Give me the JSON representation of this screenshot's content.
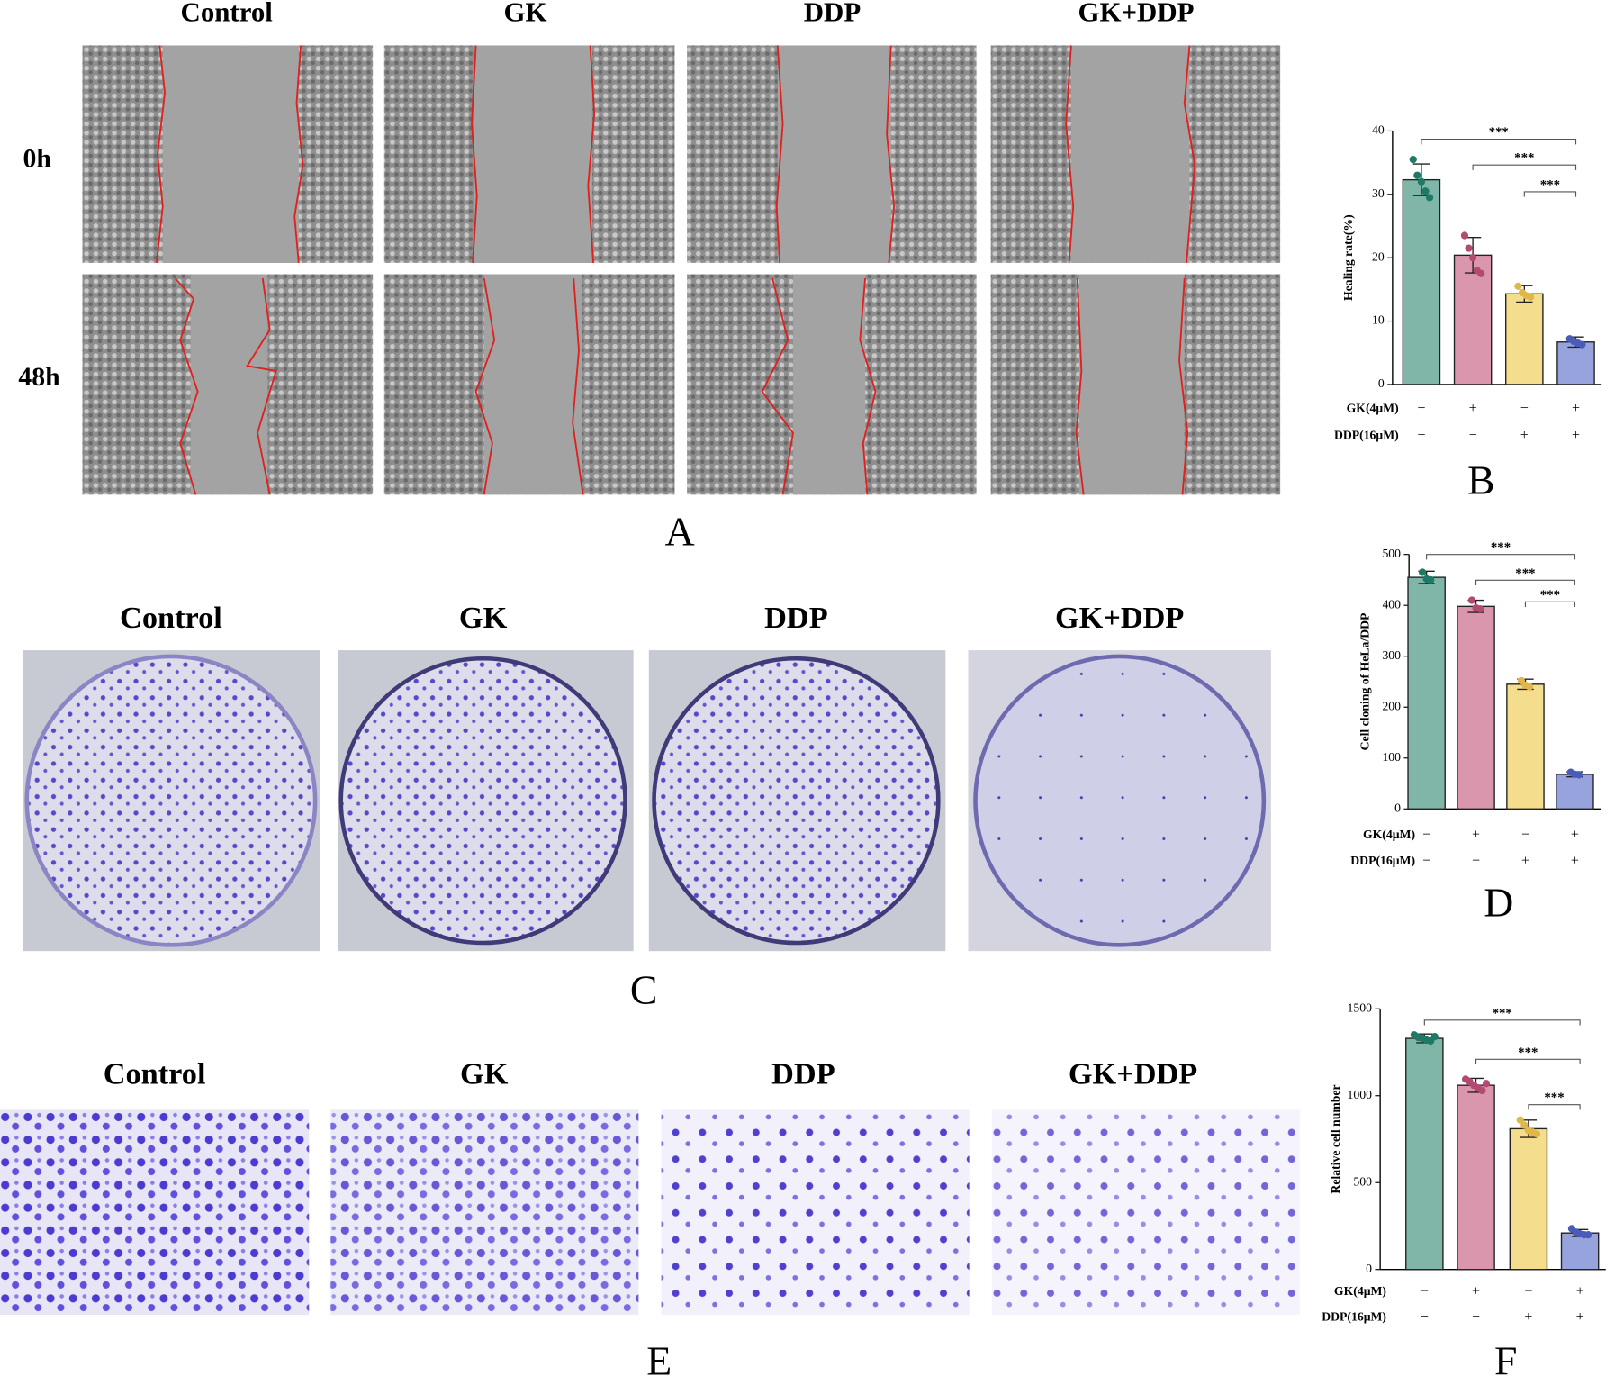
{
  "panels": {
    "A": {
      "letter": "A",
      "columns": [
        "Control",
        "GK",
        "DDP",
        "GK+DDP"
      ],
      "rows": [
        "0h",
        "48h"
      ]
    },
    "C": {
      "letter": "C",
      "columns": [
        "Control",
        "GK",
        "DDP",
        "GK+DDP"
      ]
    },
    "E": {
      "letter": "E",
      "columns": [
        "Control",
        "GK",
        "DDP",
        "GK+DDP"
      ]
    }
  },
  "chart_data": [
    {
      "type": "bar",
      "letter": "B",
      "ylabel": "Healing rate(%)",
      "ylim": [
        0,
        40
      ],
      "yticks": [
        0,
        10,
        20,
        30,
        40
      ],
      "values": [
        32.3,
        20.4,
        14.3,
        6.7
      ],
      "errors": [
        2.5,
        2.8,
        1.3,
        0.8
      ],
      "points": [
        [
          35.5,
          33,
          32,
          30.5,
          29.5
        ],
        [
          23.5,
          21.5,
          20,
          18,
          17.5
        ],
        [
          15.5,
          14.5,
          14,
          13.8
        ],
        [
          7.2,
          6.8,
          6.5,
          6.3
        ]
      ],
      "colors": [
        "#7fb6a8",
        "#d996ad",
        "#f5dd8e",
        "#97a3dc"
      ],
      "point_colors": [
        "#1e7a66",
        "#b34a72",
        "#e0b84a",
        "#4b5bb8"
      ],
      "conditions": [
        {
          "name": "GK(4μM)",
          "signs": [
            "−",
            "+",
            "−",
            "+"
          ]
        },
        {
          "name": "DDP(16μM)",
          "signs": [
            "−",
            "−",
            "+",
            "+"
          ]
        }
      ],
      "significance": [
        "***",
        "***",
        "***"
      ]
    },
    {
      "type": "bar",
      "letter": "D",
      "ylabel": "Cell cloning of HeLa/DDP",
      "ylim": [
        0,
        500
      ],
      "yticks": [
        0,
        100,
        200,
        300,
        400,
        500
      ],
      "values": [
        455,
        398,
        245,
        68
      ],
      "errors": [
        12,
        12,
        10,
        5
      ],
      "points": [
        [
          465,
          452,
          450
        ],
        [
          410,
          395,
          393
        ],
        [
          252,
          243,
          240
        ],
        [
          72,
          68,
          67
        ]
      ],
      "colors": [
        "#7fb6a8",
        "#d996ad",
        "#f5dd8e",
        "#97a3dc"
      ],
      "point_colors": [
        "#1e7a66",
        "#b34a72",
        "#e0b84a",
        "#4b5bb8"
      ],
      "conditions": [
        {
          "name": "GK(4μM)",
          "signs": [
            "−",
            "+",
            "−",
            "+"
          ]
        },
        {
          "name": "DDP(16μM)",
          "signs": [
            "−",
            "−",
            "+",
            "+"
          ]
        }
      ],
      "significance": [
        "***",
        "***",
        "***"
      ]
    },
    {
      "type": "bar",
      "letter": "F",
      "ylabel": "Relative cell number",
      "ylim": [
        0,
        1500
      ],
      "yticks": [
        0,
        500,
        1000,
        1500
      ],
      "values": [
        1330,
        1060,
        810,
        210
      ],
      "errors": [
        25,
        40,
        50,
        20
      ],
      "points": [
        [
          1350,
          1335,
          1330,
          1320,
          1315,
          1340
        ],
        [
          1095,
          1080,
          1060,
          1045,
          1030,
          1070
        ],
        [
          860,
          830,
          800,
          790,
          780
        ],
        [
          235,
          215,
          205,
          200,
          200
        ]
      ],
      "colors": [
        "#7fb6a8",
        "#d996ad",
        "#f5dd8e",
        "#97a3dc"
      ],
      "point_colors": [
        "#1e7a66",
        "#b34a72",
        "#e0b84a",
        "#4b5bb8"
      ],
      "conditions": [
        {
          "name": "GK(4μM)",
          "signs": [
            "−",
            "+",
            "−",
            "+"
          ]
        },
        {
          "name": "DDP(16μM)",
          "signs": [
            "−",
            "−",
            "+",
            "+"
          ]
        }
      ],
      "significance": [
        "***",
        "***",
        "***"
      ]
    }
  ]
}
